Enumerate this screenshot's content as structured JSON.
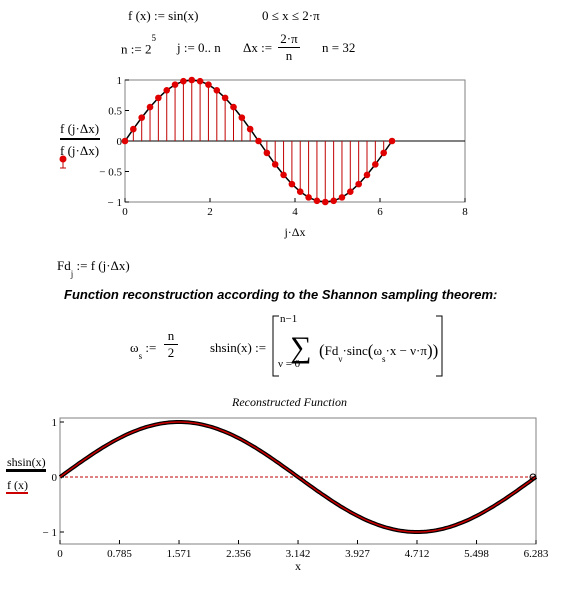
{
  "defs": {
    "line1_func": "f (x) := sin(x)",
    "line1_range": "0 ≤ x ≤ 2·π",
    "n_def_base": "n := 2",
    "n_def_exp": "5",
    "j_def": "j := 0.. n",
    "dx_lhs": "Δx :=",
    "dx_num": "2·π",
    "dx_den": "n",
    "n_eval": "n = 32"
  },
  "plot1": {
    "ylabel_top": "f (j·Δx)",
    "ylabel_bottom": "f (j·Δx)",
    "xlabel": "j·Δx",
    "yticks": [
      "1",
      "0.5",
      "0",
      "− 0.5",
      "− 1"
    ],
    "xticks": [
      "0",
      "2",
      "4",
      "6",
      "8"
    ]
  },
  "fd_def": {
    "lhs": "Fd",
    "sub": "j",
    "rhs": ":= f (j·Δx)"
  },
  "heading": "Function reconstruction according to the Shannon sampling theorem:",
  "omega_def": {
    "lhs": "ω",
    "sub": "s",
    "assign": ":=",
    "num": "n",
    "den": "2"
  },
  "shsin_def": {
    "lhs": "shsin(x) :=",
    "upper": "n−1",
    "lower": "ν = 0",
    "body_fd": "Fd",
    "body_fd_sub": "ν",
    "body_mid": "·sinc",
    "body_omega": "ω",
    "body_omega_sub": "s",
    "body_rest": "·x − ν·π"
  },
  "plot2": {
    "title": "Reconstructed Function",
    "ylabel_top": "shsin(x)",
    "ylabel_bottom": "f (x)",
    "xlabel": "x",
    "yticks": [
      "1",
      "0",
      "− 1"
    ],
    "xticks": [
      "0",
      "0.785",
      "1.571",
      "2.356",
      "3.142",
      "3.927",
      "4.712",
      "5.498",
      "6.283"
    ]
  },
  "colors": {
    "stem": "#c00000",
    "marker": "#e00000",
    "curve": "#000000",
    "recon_red": "#cc0000",
    "axis_zero": "#c00000"
  },
  "chart_data": [
    {
      "type": "scatter",
      "title": "",
      "xlabel": "j·Δx",
      "ylabel": "f (j·Δx)",
      "xlim": [
        0,
        8
      ],
      "ylim": [
        -1,
        1
      ],
      "grid": false,
      "n_samples": 33,
      "series": [
        {
          "name": "f (j·Δx)",
          "style": "line-black"
        },
        {
          "name": "f (j·Δx)",
          "style": "stem-red-markers"
        }
      ],
      "x": [
        0,
        0.196,
        0.393,
        0.589,
        0.785,
        0.982,
        1.178,
        1.374,
        1.571,
        1.767,
        1.963,
        2.16,
        2.356,
        2.553,
        2.749,
        2.945,
        3.142,
        3.338,
        3.534,
        3.731,
        3.927,
        4.123,
        4.32,
        4.516,
        4.712,
        4.909,
        5.105,
        5.301,
        5.498,
        5.694,
        5.89,
        6.087,
        6.283
      ],
      "y": [
        0,
        0.195,
        0.383,
        0.556,
        0.707,
        0.831,
        0.924,
        0.981,
        1.0,
        0.981,
        0.924,
        0.831,
        0.707,
        0.556,
        0.383,
        0.195,
        0,
        -0.195,
        -0.383,
        -0.556,
        -0.707,
        -0.831,
        -0.924,
        -0.981,
        -1.0,
        -0.981,
        -0.924,
        -0.831,
        -0.707,
        -0.556,
        -0.383,
        -0.195,
        0
      ]
    },
    {
      "type": "line",
      "title": "Reconstructed Function",
      "xlabel": "x",
      "ylabel": "shsin(x), f (x)",
      "xlim": [
        0,
        6.283
      ],
      "ylim": [
        -1,
        1
      ],
      "grid": false,
      "series": [
        {
          "name": "shsin(x)",
          "style": "thick-black"
        },
        {
          "name": "f (x)",
          "style": "red"
        }
      ]
    }
  ]
}
